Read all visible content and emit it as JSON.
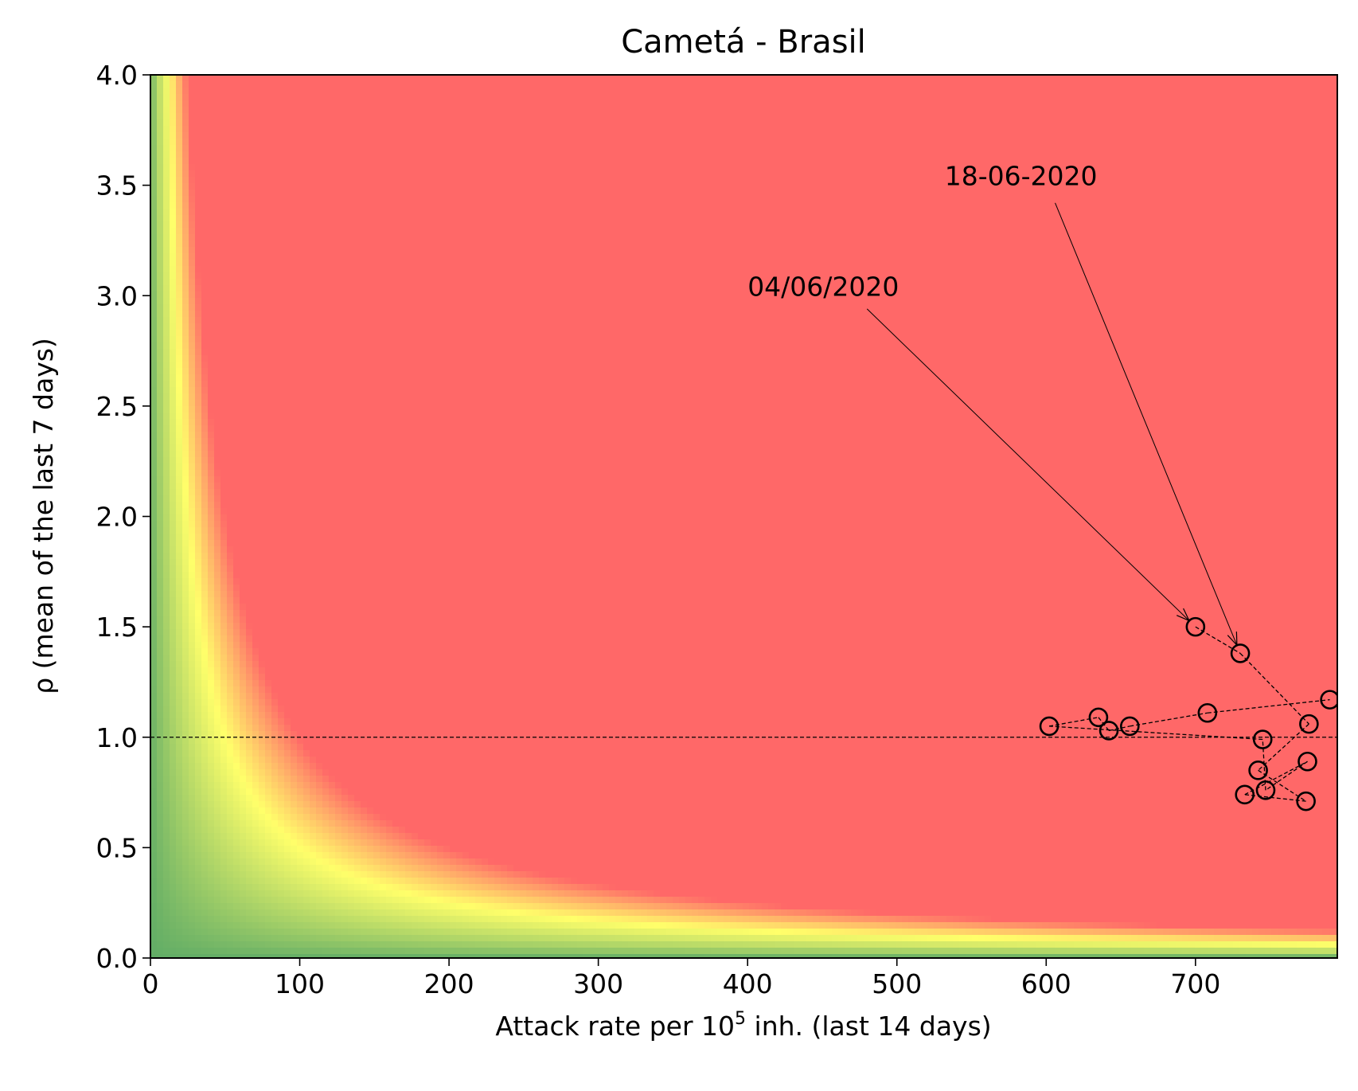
{
  "chart_data": {
    "type": "scatter",
    "title": "Cametá - Brasil",
    "xlabel_prefix": "Attack rate per 10",
    "xlabel_sup": "5",
    "xlabel_suffix": " inh. (last 14 days)",
    "ylabel": "ρ (mean of the last 7 days)",
    "xlim": [
      0,
      795
    ],
    "ylim": [
      0,
      4.0
    ],
    "xticks": [
      0,
      100,
      200,
      300,
      400,
      500,
      600,
      700
    ],
    "xtick_labels": [
      "0",
      "100",
      "200",
      "300",
      "400",
      "500",
      "600",
      "700"
    ],
    "yticks": [
      0.0,
      0.5,
      1.0,
      1.5,
      2.0,
      2.5,
      3.0,
      3.5,
      4.0
    ],
    "ytick_labels": [
      "0.0",
      "0.5",
      "1.0",
      "1.5",
      "2.0",
      "2.5",
      "3.0",
      "3.5",
      "4.0"
    ],
    "reference_line_y": 1.0,
    "background": {
      "type": "risk-heatmap",
      "note": "risk = x * rho; green (low) to yellow to red (high)",
      "colors": {
        "low": "#62ad66",
        "mid": "#ffff6a",
        "high": "#ff6868"
      }
    },
    "series": [
      {
        "marker": "open-circle",
        "line": "dashed",
        "points": [
          {
            "x": 700,
            "y": 1.5
          },
          {
            "x": 730,
            "y": 1.38
          },
          {
            "x": 776,
            "y": 1.06
          },
          {
            "x": 742,
            "y": 0.85
          },
          {
            "x": 774,
            "y": 0.71
          },
          {
            "x": 733,
            "y": 0.74
          },
          {
            "x": 775,
            "y": 0.89
          },
          {
            "x": 747,
            "y": 0.76
          },
          {
            "x": 745,
            "y": 0.99
          },
          {
            "x": 602,
            "y": 1.05
          },
          {
            "x": 635,
            "y": 1.09
          },
          {
            "x": 642,
            "y": 1.03
          },
          {
            "x": 656,
            "y": 1.05
          },
          {
            "x": 708,
            "y": 1.11
          },
          {
            "x": 790,
            "y": 1.17
          }
        ]
      }
    ],
    "annotations": [
      {
        "text": "04/06/2020",
        "text_x": 400,
        "text_y": 3.0,
        "arrow_from_x": 480,
        "arrow_from_y": 2.94,
        "target_x": 700,
        "target_y": 1.5
      },
      {
        "text": "18-06-2020",
        "text_x": 532,
        "text_y": 3.5,
        "arrow_from_x": 606,
        "arrow_from_y": 3.42,
        "target_x": 730,
        "target_y": 1.38
      }
    ]
  }
}
